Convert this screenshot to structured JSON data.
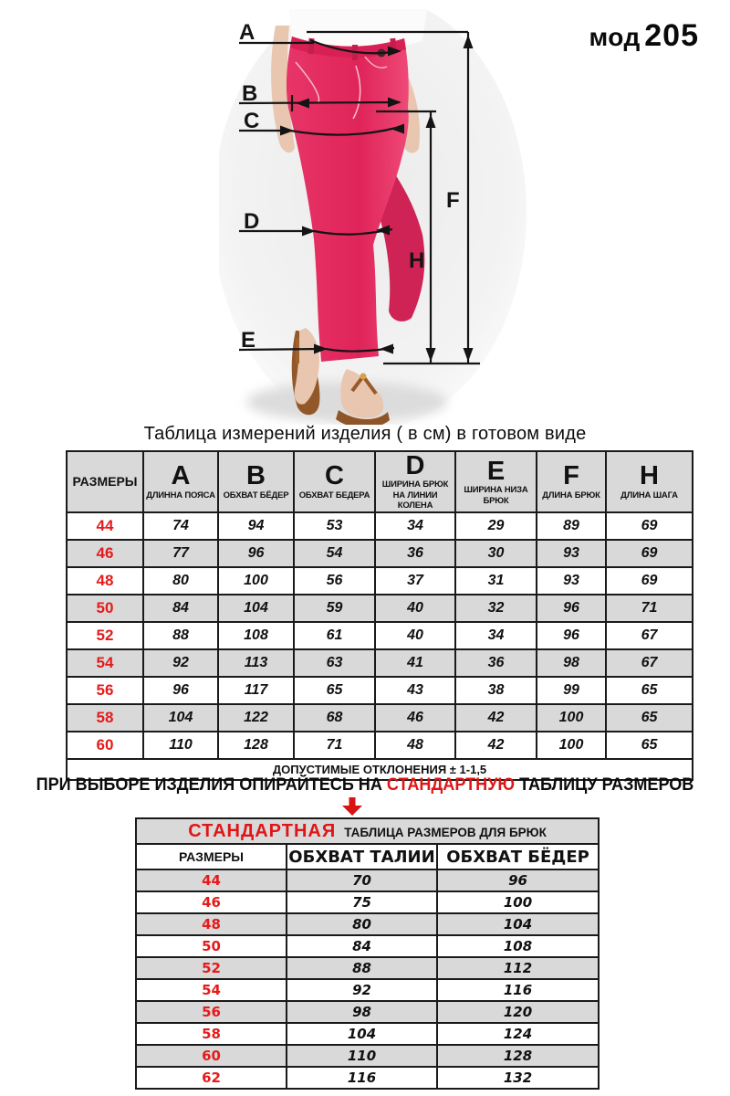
{
  "model": {
    "prefix": "мод",
    "number": "205"
  },
  "diagram": {
    "letters": {
      "a": "A",
      "b": "B",
      "c": "C",
      "d": "D",
      "e": "E",
      "f": "F",
      "h": "H"
    },
    "pants_color": "#e23060",
    "sandal_color": "#93582a"
  },
  "measurement_table": {
    "title": "Таблица  измерений изделия ( в см) в готовом виде",
    "size_header": "РАЗМЕРЫ",
    "columns": [
      {
        "letter": "A",
        "label": "ДЛИННА ПОЯСА"
      },
      {
        "letter": "B",
        "label": "ОБХВАТ БЁДЕР"
      },
      {
        "letter": "C",
        "label": "ОБХВАТ БЕДЕРА"
      },
      {
        "letter": "D",
        "label": "ШИРИНА БРЮК НА ЛИНИИ КОЛЕНА"
      },
      {
        "letter": "E",
        "label": "ШИРИНА НИЗА БРЮК"
      },
      {
        "letter": "F",
        "label": "ДЛИНА БРЮК"
      },
      {
        "letter": "H",
        "label": "ДЛИНА ШАГА"
      }
    ],
    "rows": [
      {
        "size": "44",
        "values": [
          "74",
          "94",
          "53",
          "34",
          "29",
          "89",
          "69"
        ]
      },
      {
        "size": "46",
        "values": [
          "77",
          "96",
          "54",
          "36",
          "30",
          "93",
          "69"
        ]
      },
      {
        "size": "48",
        "values": [
          "80",
          "100",
          "56",
          "37",
          "31",
          "93",
          "69"
        ]
      },
      {
        "size": "50",
        "values": [
          "84",
          "104",
          "59",
          "40",
          "32",
          "96",
          "71"
        ]
      },
      {
        "size": "52",
        "values": [
          "88",
          "108",
          "61",
          "40",
          "34",
          "96",
          "67"
        ]
      },
      {
        "size": "54",
        "values": [
          "92",
          "113",
          "63",
          "41",
          "36",
          "98",
          "67"
        ]
      },
      {
        "size": "56",
        "values": [
          "96",
          "117",
          "65",
          "43",
          "38",
          "99",
          "65"
        ]
      },
      {
        "size": "58",
        "values": [
          "104",
          "122",
          "68",
          "46",
          "42",
          "100",
          "65"
        ]
      },
      {
        "size": "60",
        "values": [
          "110",
          "128",
          "71",
          "48",
          "42",
          "100",
          "65"
        ]
      }
    ],
    "footer": "ДОПУСТИМЫЕ ОТКЛОНЕНИЯ  ± 1-1,5"
  },
  "advice": {
    "before": "ПРИ ВЫБОРЕ ИЗДЕЛИЯ ОПИРАЙТЕСЬ НА ",
    "highlight": "СТАНДАРТНУЮ",
    "after": " ТАБЛИЦУ РАЗМЕРОВ"
  },
  "standard_table": {
    "title_highlight": "СТАНДАРТНАЯ",
    "title_rest": "ТАБЛИЦА РАЗМЕРОВ ДЛЯ БРЮК",
    "headers": [
      "РАЗМЕРЫ",
      "ОБХВАТ ТАЛИИ",
      "ОБХВАТ БЁДЕР"
    ],
    "rows": [
      {
        "size": "44",
        "waist": "70",
        "hips": "96"
      },
      {
        "size": "46",
        "waist": "75",
        "hips": "100"
      },
      {
        "size": "48",
        "waist": "80",
        "hips": "104"
      },
      {
        "size": "50",
        "waist": "84",
        "hips": "108"
      },
      {
        "size": "52",
        "waist": "88",
        "hips": "112"
      },
      {
        "size": "54",
        "waist": "92",
        "hips": "116"
      },
      {
        "size": "56",
        "waist": "98",
        "hips": "120"
      },
      {
        "size": "58",
        "waist": "104",
        "hips": "124"
      },
      {
        "size": "60",
        "waist": "110",
        "hips": "128"
      },
      {
        "size": "62",
        "waist": "116",
        "hips": "132"
      }
    ]
  },
  "colors": {
    "accent_red": "#e01515",
    "row_gray": "#d9d9d9",
    "border": "#1a1a1a",
    "pants_pink": "#e23060"
  }
}
